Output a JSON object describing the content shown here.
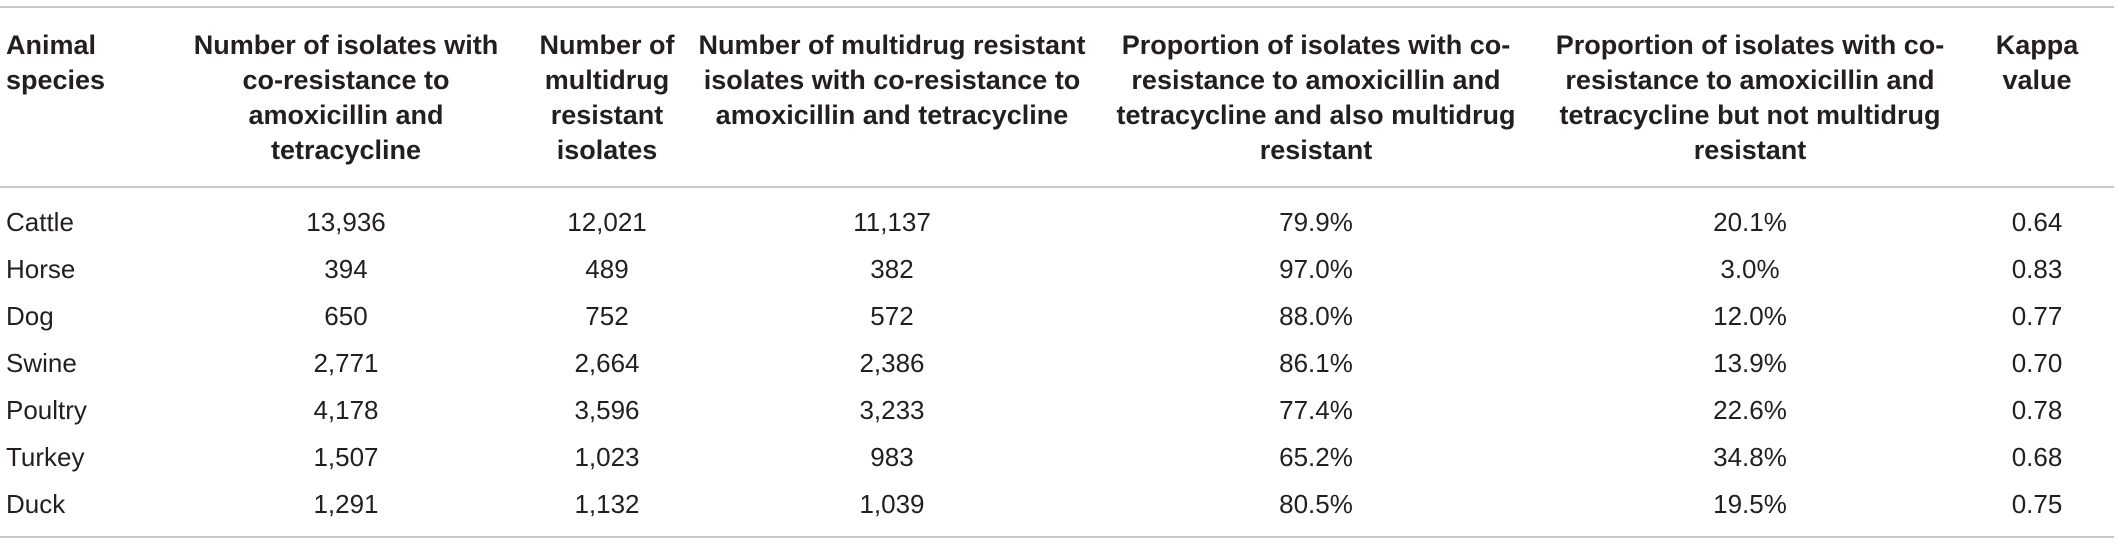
{
  "table": {
    "headers": [
      "Animal species",
      "Number of isolates with co-resistance to amoxicillin and tetracycline",
      "Number of multidrug resistant isolates",
      "Number of multidrug resistant isolates with co-resistance to amoxicillin and tetracycline",
      "Proportion of isolates with co-resistance to amoxicillin and tetracycline and also multidrug resistant",
      "Proportion of isolates with co-resistance to amoxicillin and tetracycline but not multidrug resistant",
      "Kappa value"
    ],
    "rows": [
      [
        "Cattle",
        "13,936",
        "12,021",
        "11,137",
        "79.9%",
        "20.1%",
        "0.64"
      ],
      [
        "Horse",
        "394",
        "489",
        "382",
        "97.0%",
        "3.0%",
        "0.83"
      ],
      [
        "Dog",
        "650",
        "752",
        "572",
        "88.0%",
        "12.0%",
        "0.77"
      ],
      [
        "Swine",
        "2,771",
        "2,664",
        "2,386",
        "86.1%",
        "13.9%",
        "0.70"
      ],
      [
        "Poultry",
        "4,178",
        "3,596",
        "3,233",
        "77.4%",
        "22.6%",
        "0.78"
      ],
      [
        "Turkey",
        "1,507",
        "1,023",
        "983",
        "65.2%",
        "34.8%",
        "0.68"
      ],
      [
        "Duck",
        "1,291",
        "1,132",
        "1,039",
        "80.5%",
        "19.5%",
        "0.75"
      ]
    ]
  }
}
